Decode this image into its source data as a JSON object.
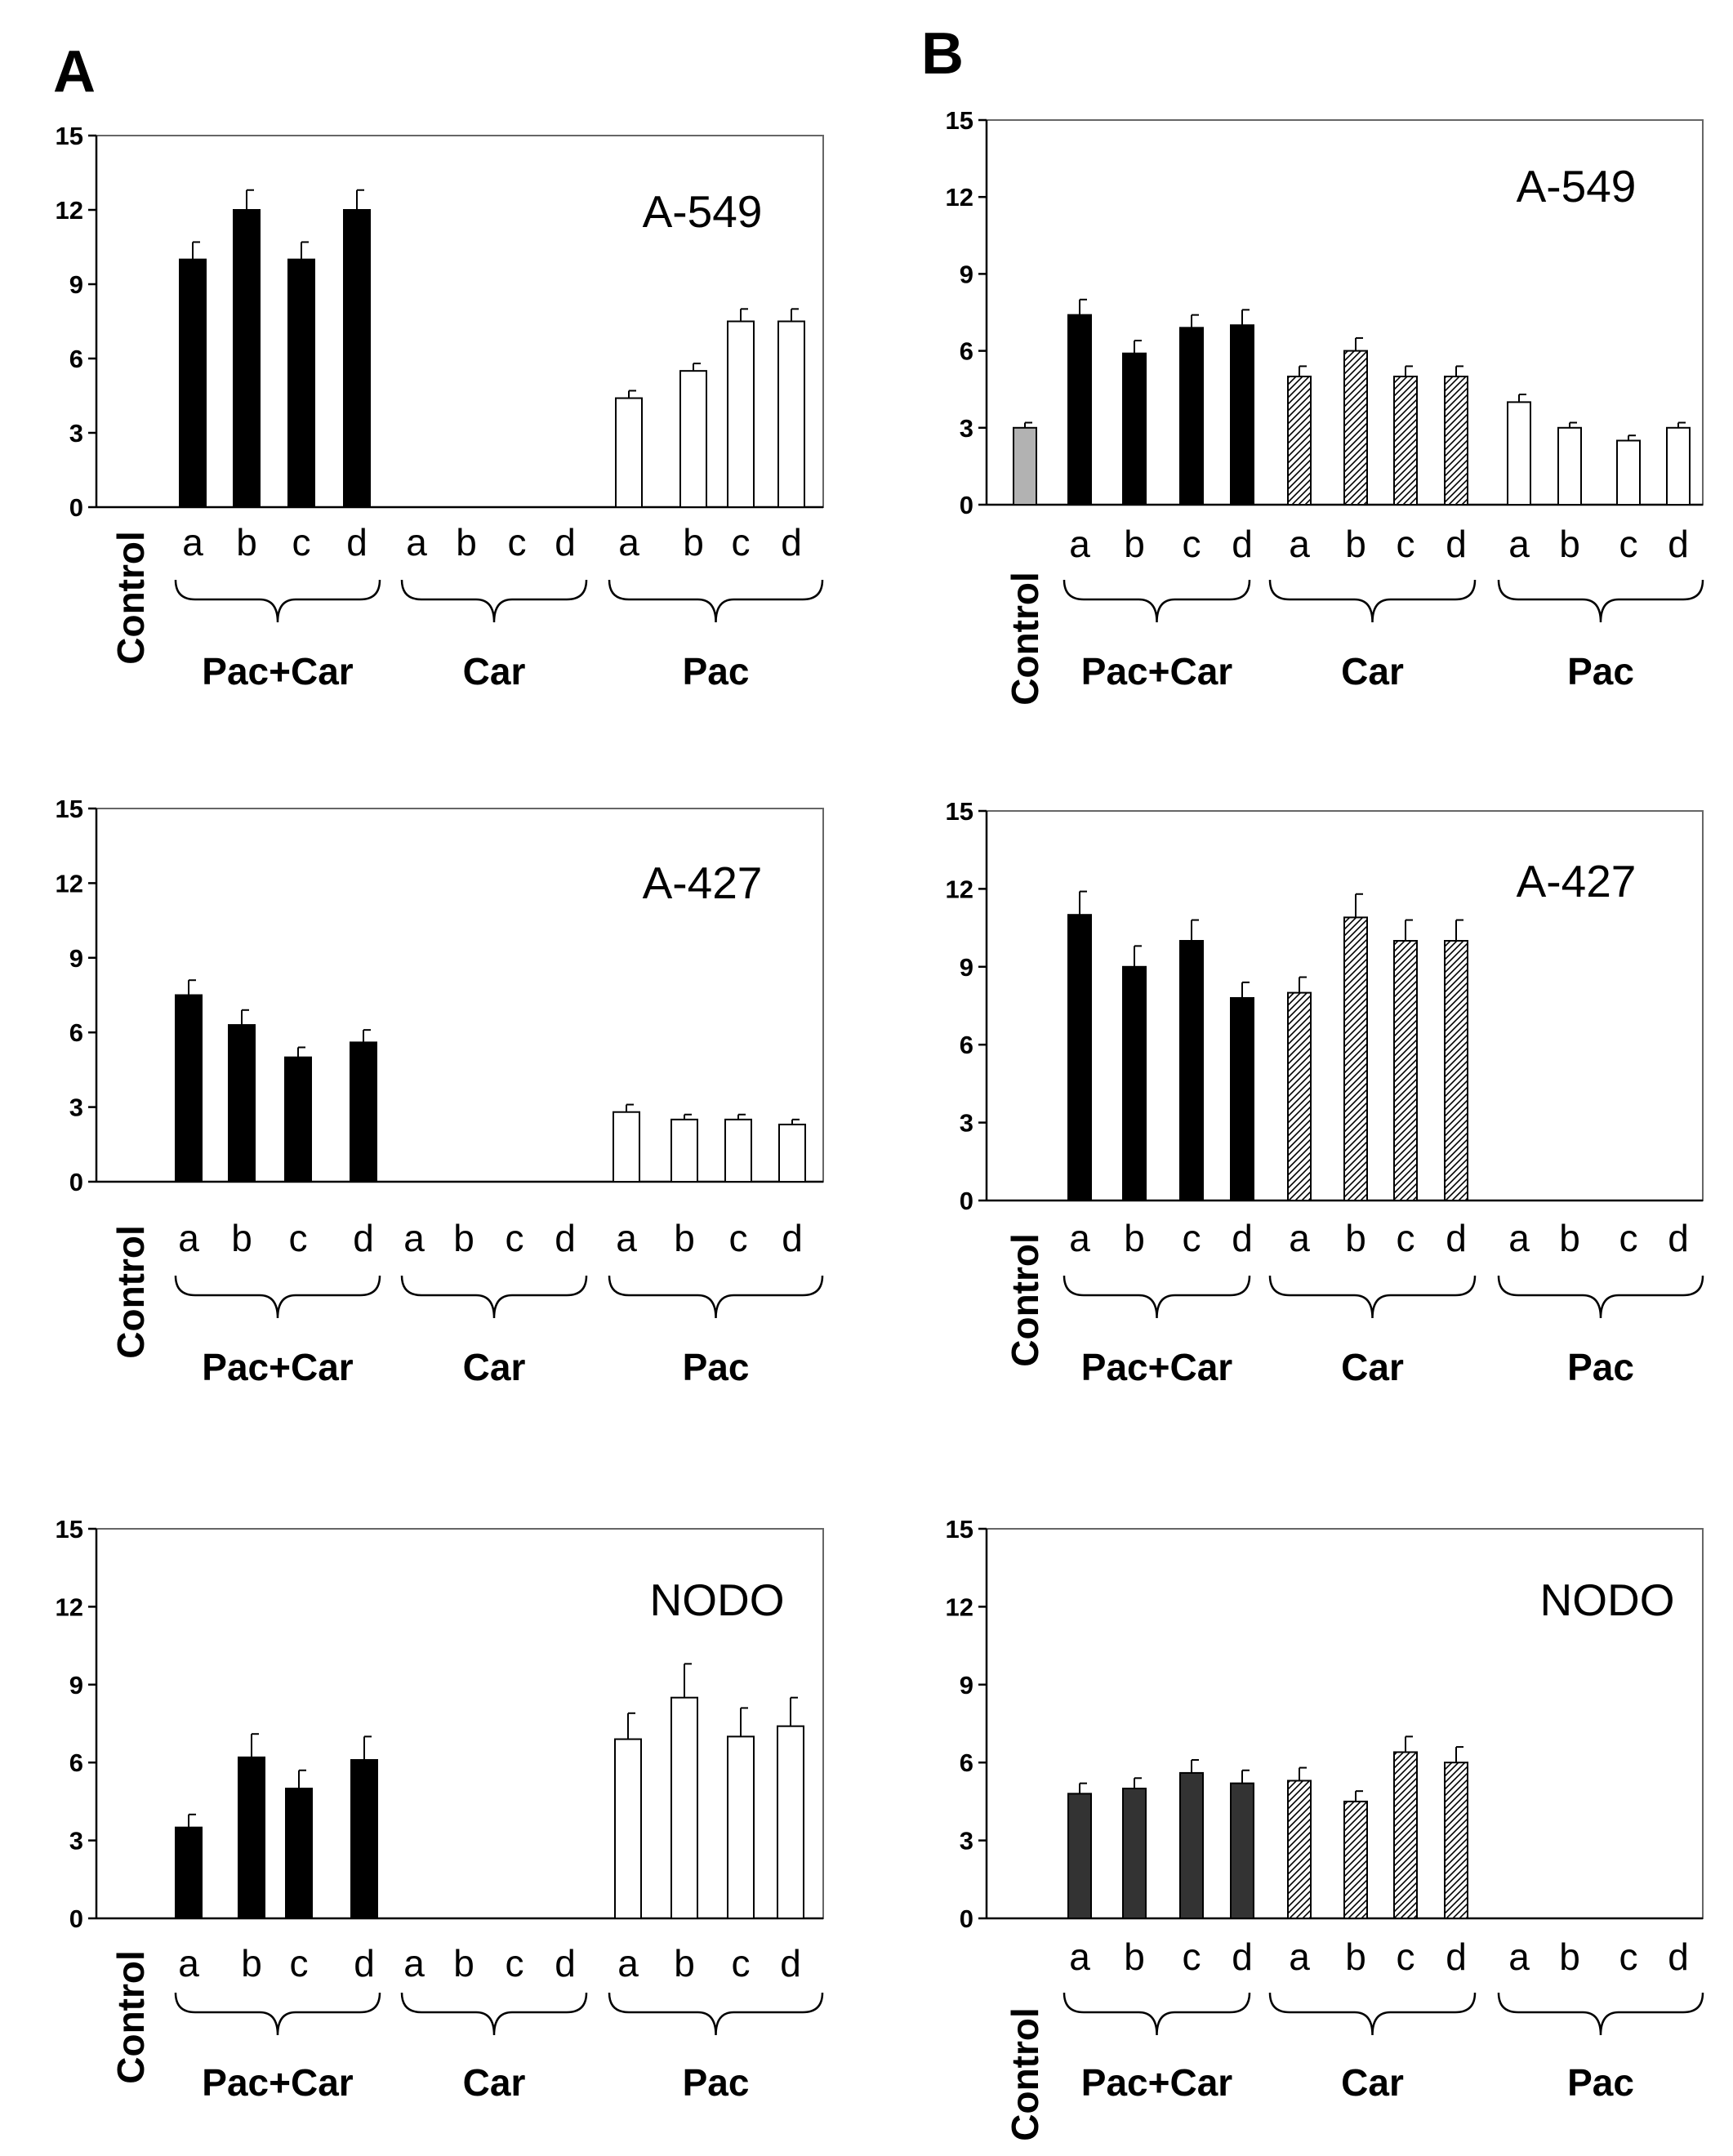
{
  "figure": {
    "panel_labels": [
      "A",
      "B"
    ]
  },
  "chart_data": [
    {
      "type": "bar",
      "panel": "A",
      "title": "A-549",
      "ylim": [
        0,
        15
      ],
      "yticks": [
        0,
        3,
        6,
        9,
        12,
        15
      ],
      "groups": [
        "Control",
        "Pac+Car",
        "Car",
        "Pac"
      ],
      "subcategories": [
        "a",
        "b",
        "c",
        "d"
      ],
      "series": [
        {
          "name": "Control",
          "fill": "",
          "values": [
            0
          ],
          "errors": [
            0
          ]
        },
        {
          "name": "Pac+Car",
          "fill": "black",
          "values": [
            10,
            12,
            10,
            12
          ],
          "errors": [
            0.7,
            0.8,
            0.7,
            0.8
          ]
        },
        {
          "name": "Car",
          "fill": "",
          "values": [
            0,
            0,
            0,
            0
          ],
          "errors": [
            0,
            0,
            0,
            0
          ]
        },
        {
          "name": "Pac",
          "fill": "white",
          "values": [
            4.4,
            5.5,
            7.5,
            7.5
          ],
          "errors": [
            0.3,
            0.3,
            0.5,
            0.5
          ]
        }
      ]
    },
    {
      "type": "bar",
      "panel": "A",
      "title": "A-427",
      "ylim": [
        0,
        15
      ],
      "yticks": [
        0,
        3,
        6,
        9,
        12,
        15
      ],
      "groups": [
        "Control",
        "Pac+Car",
        "Car",
        "Pac"
      ],
      "subcategories": [
        "a",
        "b",
        "c",
        "d"
      ],
      "series": [
        {
          "name": "Control",
          "fill": "",
          "values": [
            0
          ],
          "errors": [
            0
          ]
        },
        {
          "name": "Pac+Car",
          "fill": "black",
          "values": [
            7.5,
            6.3,
            5.0,
            5.6
          ],
          "errors": [
            0.6,
            0.6,
            0.4,
            0.5
          ]
        },
        {
          "name": "Car",
          "fill": "",
          "values": [
            0,
            0,
            0,
            0
          ],
          "errors": [
            0,
            0,
            0,
            0
          ]
        },
        {
          "name": "Pac",
          "fill": "white",
          "values": [
            2.8,
            2.5,
            2.5,
            2.3
          ],
          "errors": [
            0.3,
            0.2,
            0.2,
            0.2
          ]
        }
      ]
    },
    {
      "type": "bar",
      "panel": "A",
      "title": "NODO",
      "ylim": [
        0,
        15
      ],
      "yticks": [
        0,
        3,
        6,
        9,
        12,
        15
      ],
      "groups": [
        "Control",
        "Pac+Car",
        "Car",
        "Pac"
      ],
      "subcategories": [
        "a",
        "b",
        "c",
        "d"
      ],
      "series": [
        {
          "name": "Control",
          "fill": "",
          "values": [
            0
          ],
          "errors": [
            0
          ]
        },
        {
          "name": "Pac+Car",
          "fill": "black",
          "values": [
            3.5,
            6.2,
            5.0,
            6.1
          ],
          "errors": [
            0.5,
            0.9,
            0.7,
            0.9
          ]
        },
        {
          "name": "Car",
          "fill": "",
          "values": [
            0,
            0,
            0,
            0
          ],
          "errors": [
            0,
            0,
            0,
            0
          ]
        },
        {
          "name": "Pac",
          "fill": "white",
          "values": [
            6.9,
            8.5,
            7.0,
            7.4
          ],
          "errors": [
            1.0,
            1.3,
            1.1,
            1.1
          ]
        }
      ]
    },
    {
      "type": "bar",
      "panel": "B",
      "title": "A-549",
      "ylim": [
        0,
        15
      ],
      "yticks": [
        0,
        3,
        6,
        9,
        12,
        15
      ],
      "groups": [
        "Control",
        "Pac+Car",
        "Car",
        "Pac"
      ],
      "subcategories": [
        "a",
        "b",
        "c",
        "d"
      ],
      "series": [
        {
          "name": "Control",
          "fill": "gray",
          "values": [
            3.0
          ],
          "errors": [
            0.2
          ]
        },
        {
          "name": "Pac+Car",
          "fill": "black",
          "values": [
            7.4,
            5.9,
            6.9,
            7.0
          ],
          "errors": [
            0.6,
            0.5,
            0.5,
            0.6
          ]
        },
        {
          "name": "Car",
          "fill": "hatch",
          "values": [
            5.0,
            6.0,
            5.0,
            5.0
          ],
          "errors": [
            0.4,
            0.5,
            0.4,
            0.4
          ]
        },
        {
          "name": "Pac",
          "fill": "white",
          "values": [
            4.0,
            3.0,
            2.5,
            3.0
          ],
          "errors": [
            0.3,
            0.2,
            0.2,
            0.2
          ]
        }
      ]
    },
    {
      "type": "bar",
      "panel": "B",
      "title": "A-427",
      "ylim": [
        0,
        15
      ],
      "yticks": [
        0,
        3,
        6,
        9,
        12,
        15
      ],
      "groups": [
        "Control",
        "Pac+Car",
        "Car",
        "Pac"
      ],
      "subcategories": [
        "a",
        "b",
        "c",
        "d"
      ],
      "series": [
        {
          "name": "Control",
          "fill": "",
          "values": [
            0
          ],
          "errors": [
            0
          ]
        },
        {
          "name": "Pac+Car",
          "fill": "black",
          "values": [
            11.0,
            9.0,
            10.0,
            7.8
          ],
          "errors": [
            0.9,
            0.8,
            0.8,
            0.6
          ]
        },
        {
          "name": "Car",
          "fill": "hatch",
          "values": [
            8.0,
            10.9,
            10.0,
            10.0
          ],
          "errors": [
            0.6,
            0.9,
            0.8,
            0.8
          ]
        },
        {
          "name": "Pac",
          "fill": "",
          "values": [
            0,
            0,
            0,
            0
          ],
          "errors": [
            0,
            0,
            0,
            0
          ]
        }
      ]
    },
    {
      "type": "bar",
      "panel": "B",
      "title": "NODO",
      "ylim": [
        0,
        15
      ],
      "yticks": [
        0,
        3,
        6,
        9,
        12,
        15
      ],
      "groups": [
        "Control",
        "Pac+Car",
        "Car",
        "Pac"
      ],
      "subcategories": [
        "a",
        "b",
        "c",
        "d"
      ],
      "series": [
        {
          "name": "Control",
          "fill": "",
          "values": [
            0
          ],
          "errors": [
            0
          ]
        },
        {
          "name": "Pac+Car",
          "fill": "darkgray",
          "values": [
            4.8,
            5.0,
            5.6,
            5.2
          ],
          "errors": [
            0.4,
            0.4,
            0.5,
            0.5
          ]
        },
        {
          "name": "Car",
          "fill": "hatch",
          "values": [
            5.3,
            4.5,
            6.4,
            6.0
          ],
          "errors": [
            0.5,
            0.4,
            0.6,
            0.6
          ]
        },
        {
          "name": "Pac",
          "fill": "",
          "values": [
            0,
            0,
            0,
            0
          ],
          "errors": [
            0,
            0,
            0,
            0
          ]
        }
      ]
    }
  ]
}
